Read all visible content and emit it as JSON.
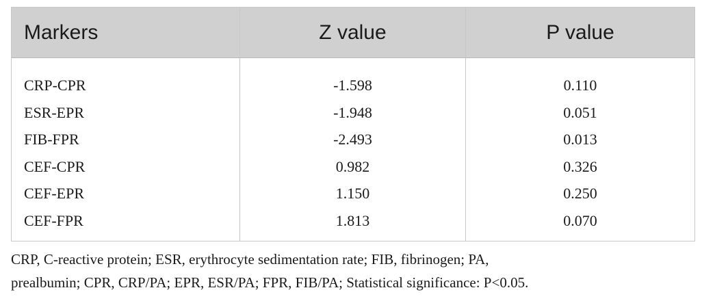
{
  "table": {
    "headers": [
      "Markers",
      "Z value",
      "P value"
    ],
    "rows": [
      {
        "marker": "CRP-CPR",
        "z": "-1.598",
        "p": "0.110"
      },
      {
        "marker": "ESR-EPR",
        "z": "-1.948",
        "p": "0.051"
      },
      {
        "marker": "FIB-FPR",
        "z": "-2.493",
        "p": "0.013"
      },
      {
        "marker": "CEF-CPR",
        "z": "0.982",
        "p": "0.326"
      },
      {
        "marker": "CEF-EPR",
        "z": "1.150",
        "p": "0.250"
      },
      {
        "marker": "CEF-FPR",
        "z": "1.813",
        "p": "0.070"
      }
    ]
  },
  "footnote": {
    "line1": "CRP, C-reactive protein; ESR, erythrocyte sedimentation rate; FIB, fibrinogen; PA,",
    "line2": "prealbumin; CPR, CRP/PA; EPR, ESR/PA; FPR, FIB/PA; Statistical significance: P<0.05."
  }
}
